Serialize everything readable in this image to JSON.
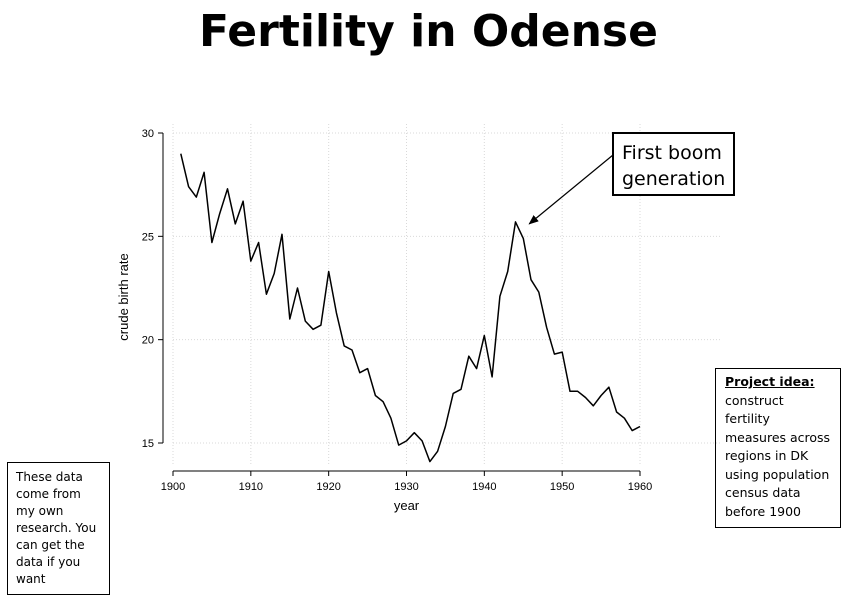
{
  "slide": {
    "title": "Fertility in Odense",
    "callout": "First boom generation",
    "note_left": "These data come from my own research. You can get the data if you want",
    "note_right_heading": "Project idea:",
    "note_right_body": "construct fertility measures across regions in DK using population census data before 1900"
  },
  "chart_data": {
    "type": "line",
    "title": "",
    "xlabel": "year",
    "ylabel": "crude birth rate",
    "xlim": [
      1900,
      1960
    ],
    "ylim": [
      14,
      30
    ],
    "x_ticks": [
      1900,
      1910,
      1920,
      1930,
      1940,
      1950,
      1960
    ],
    "y_ticks": [
      15,
      20,
      25,
      30
    ],
    "grid": true,
    "line_color": "#000000",
    "series": [
      {
        "x": [
          1901,
          1902,
          1903,
          1904,
          1905,
          1906,
          1907,
          1908,
          1909,
          1910,
          1911,
          1912,
          1913,
          1914,
          1915,
          1916,
          1917,
          1918,
          1919,
          1920,
          1921,
          1922,
          1923,
          1924,
          1925,
          1926,
          1927,
          1928,
          1929,
          1930,
          1931,
          1932,
          1933,
          1934,
          1935,
          1936,
          1937,
          1938,
          1939,
          1940,
          1941,
          1942,
          1943,
          1944,
          1945,
          1946,
          1947,
          1948,
          1949,
          1950,
          1951,
          1952,
          1953,
          1954,
          1955,
          1956,
          1957,
          1958,
          1959,
          1960
        ],
        "values": [
          29.0,
          27.4,
          26.9,
          28.1,
          24.7,
          26.1,
          27.3,
          25.6,
          26.7,
          23.8,
          24.7,
          22.2,
          23.2,
          25.1,
          21.0,
          22.5,
          20.9,
          20.5,
          20.7,
          23.3,
          21.3,
          19.7,
          19.5,
          18.4,
          18.6,
          17.3,
          17.0,
          16.2,
          14.9,
          15.1,
          15.5,
          15.1,
          14.1,
          14.6,
          15.8,
          17.4,
          17.6,
          19.2,
          18.6,
          20.2,
          18.2,
          22.1,
          23.3,
          25.7,
          24.9,
          22.9,
          22.3,
          20.6,
          19.3,
          19.4,
          17.5,
          17.5,
          17.2,
          16.8,
          17.3,
          17.7,
          16.5,
          16.2,
          15.6,
          15.8
        ]
      }
    ],
    "annotation": {
      "text": "First boom generation",
      "target": [
        1945,
        25.7
      ]
    }
  }
}
